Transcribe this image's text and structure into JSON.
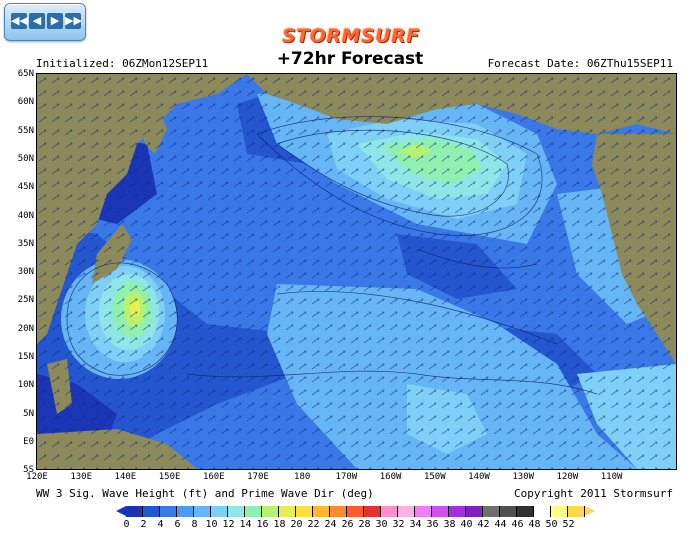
{
  "nav": {
    "buttons": [
      "◀◀",
      "◀",
      "▶",
      "▶▶"
    ]
  },
  "header": {
    "brand": "STORMSURF",
    "title": "+72hr Forecast",
    "initialized": "Initialized: 06ZMon12SEP11",
    "forecast_date": "Forecast Date: 06ZThu15SEP11"
  },
  "footer": {
    "caption": "WW 3 Sig. Wave Height (ft) and Prime Wave Dir (deg)",
    "copyright": "Copyright 2011 Stormsurf"
  },
  "axes": {
    "lat_labels": [
      "65N",
      "60N",
      "55N",
      "50N",
      "45N",
      "40N",
      "35N",
      "30N",
      "25N",
      "20N",
      "15N",
      "10N",
      "5N",
      "E0",
      "5S"
    ],
    "lon_labels": [
      "120E",
      "130E",
      "140E",
      "150E",
      "160E",
      "170E",
      "180",
      "170W",
      "160W",
      "150W",
      "140W",
      "130W",
      "120W",
      "110W"
    ]
  },
  "legend": {
    "ticks": [
      "0",
      "2",
      "4",
      "6",
      "8",
      "10",
      "12",
      "14",
      "16",
      "18",
      "20",
      "22",
      "24",
      "26",
      "28",
      "30",
      "32",
      "34",
      "36",
      "38",
      "40",
      "42",
      "44",
      "46",
      "48",
      "50",
      "52"
    ],
    "colors": [
      "#1a35b5",
      "#2456d0",
      "#3a78e8",
      "#4f9af2",
      "#66b5f5",
      "#7fd0f7",
      "#8fe6e6",
      "#90f0b0",
      "#b8f070",
      "#e8f050",
      "#ffe040",
      "#ffb830",
      "#ff8a30",
      "#ff5a30",
      "#e83030",
      "#ff90c8",
      "#ffb0e8",
      "#e880f0",
      "#d050f0",
      "#a030e0",
      "#8020c0",
      "#707070",
      "#505050",
      "#303030",
      "#ffffff",
      "#ffff80",
      "#ffd850"
    ]
  },
  "map_colors": {
    "land": "#8c8a5a",
    "deep_blue": "#1a35b5",
    "blue": "#2456d0",
    "mid_blue": "#3a78e8",
    "light_blue": "#66b5f5",
    "cyan": "#7fd0f7",
    "aqua": "#8fe6e6",
    "green": "#90f0b0",
    "yellow_green": "#b8f070",
    "yellow": "#e8f050"
  }
}
